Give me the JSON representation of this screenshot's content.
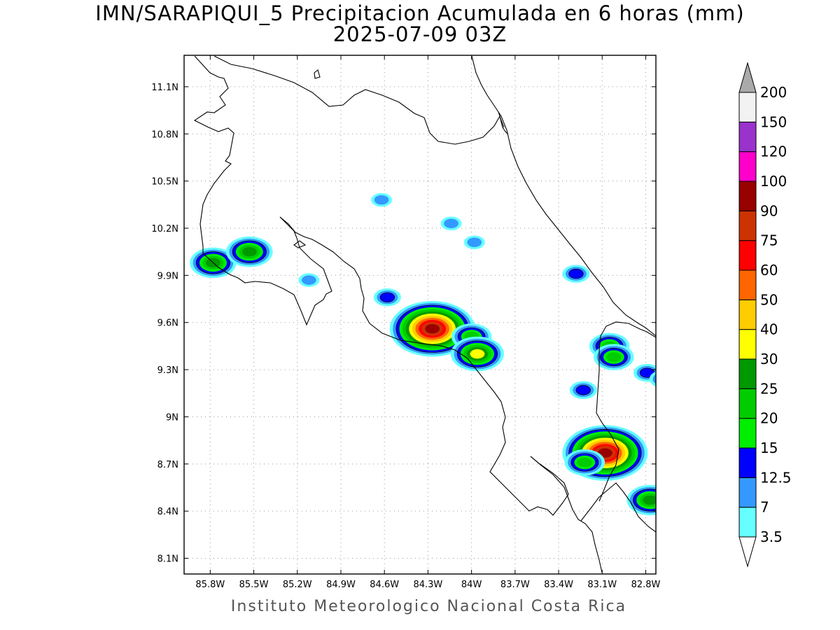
{
  "title": {
    "line1": "IMN/SARAPIQUI_5 Precipitacion Acumulada en 6 horas (mm)",
    "line2": "2025-07-09 03Z"
  },
  "footer": "Instituto Meteorologico Nacional Costa Rica",
  "map": {
    "lat_range": [
      8.0,
      11.3
    ],
    "lon_range": [
      -85.98,
      -82.73
    ],
    "lat_ticks": [
      {
        "value": 11.1,
        "label": "11.1N"
      },
      {
        "value": 10.8,
        "label": "10.8N"
      },
      {
        "value": 10.5,
        "label": "10.5N"
      },
      {
        "value": 10.2,
        "label": "10.2N"
      },
      {
        "value": 9.9,
        "label": "9.9N"
      },
      {
        "value": 9.6,
        "label": "9.6N"
      },
      {
        "value": 9.3,
        "label": "9.3N"
      },
      {
        "value": 9.0,
        "label": "9N"
      },
      {
        "value": 8.7,
        "label": "8.7N"
      },
      {
        "value": 8.4,
        "label": "8.4N"
      },
      {
        "value": 8.1,
        "label": "8.1N"
      }
    ],
    "lon_ticks": [
      {
        "value": -85.8,
        "label": "85.8W"
      },
      {
        "value": -85.5,
        "label": "85.5W"
      },
      {
        "value": -85.2,
        "label": "85.2W"
      },
      {
        "value": -84.9,
        "label": "84.9W"
      },
      {
        "value": -84.6,
        "label": "84.6W"
      },
      {
        "value": -84.3,
        "label": "84.3W"
      },
      {
        "value": -84.0,
        "label": "84W"
      },
      {
        "value": -83.7,
        "label": "83.7W"
      },
      {
        "value": -83.4,
        "label": "83.4W"
      },
      {
        "value": -83.1,
        "label": "83.1W"
      },
      {
        "value": -82.8,
        "label": "82.8W"
      }
    ],
    "grid": true
  },
  "colorbar": {
    "levels": [
      "3.5",
      "7",
      "12.5",
      "15",
      "20",
      "25",
      "30",
      "40",
      "50",
      "60",
      "75",
      "90",
      "100",
      "120",
      "150",
      "200"
    ],
    "colors": [
      "#66ffff",
      "#3399ff",
      "#0000ff",
      "#00ee00",
      "#00cc00",
      "#009900",
      "#ffff00",
      "#ffcc00",
      "#ff6600",
      "#ff0000",
      "#cc3300",
      "#990000",
      "#ff00cc",
      "#9933cc",
      "#f2f2f2",
      "#aaaaaa"
    ]
  },
  "rain_cells": [
    {
      "lon": -85.78,
      "lat": 9.98,
      "peak_mm": 25
    },
    {
      "lon": -85.53,
      "lat": 10.05,
      "peak_mm": 25
    },
    {
      "lon": -84.27,
      "lat": 9.56,
      "peak_mm": 90
    },
    {
      "lon": -84.0,
      "lat": 9.51,
      "peak_mm": 20
    },
    {
      "lon": -83.96,
      "lat": 9.4,
      "peak_mm": 30
    },
    {
      "lon": -84.58,
      "lat": 9.76,
      "peak_mm": 12.5
    },
    {
      "lon": -83.08,
      "lat": 8.77,
      "peak_mm": 90
    },
    {
      "lon": -83.22,
      "lat": 8.71,
      "peak_mm": 20
    },
    {
      "lon": -82.77,
      "lat": 8.47,
      "peak_mm": 25
    },
    {
      "lon": -83.05,
      "lat": 9.45,
      "peak_mm": 20
    },
    {
      "lon": -83.02,
      "lat": 9.38,
      "peak_mm": 20
    },
    {
      "lon": -82.79,
      "lat": 9.28,
      "peak_mm": 12.5
    },
    {
      "lon": -82.68,
      "lat": 9.24,
      "peak_mm": 12.5
    },
    {
      "lon": -83.98,
      "lat": 10.11,
      "peak_mm": 7
    },
    {
      "lon": -84.14,
      "lat": 10.23,
      "peak_mm": 7
    },
    {
      "lon": -83.23,
      "lat": 9.17,
      "peak_mm": 12.5
    },
    {
      "lon": -83.28,
      "lat": 9.91,
      "peak_mm": 12.5
    },
    {
      "lon": -84.62,
      "lat": 10.38,
      "peak_mm": 7
    },
    {
      "lon": -85.12,
      "lat": 9.87,
      "peak_mm": 7
    }
  ]
}
